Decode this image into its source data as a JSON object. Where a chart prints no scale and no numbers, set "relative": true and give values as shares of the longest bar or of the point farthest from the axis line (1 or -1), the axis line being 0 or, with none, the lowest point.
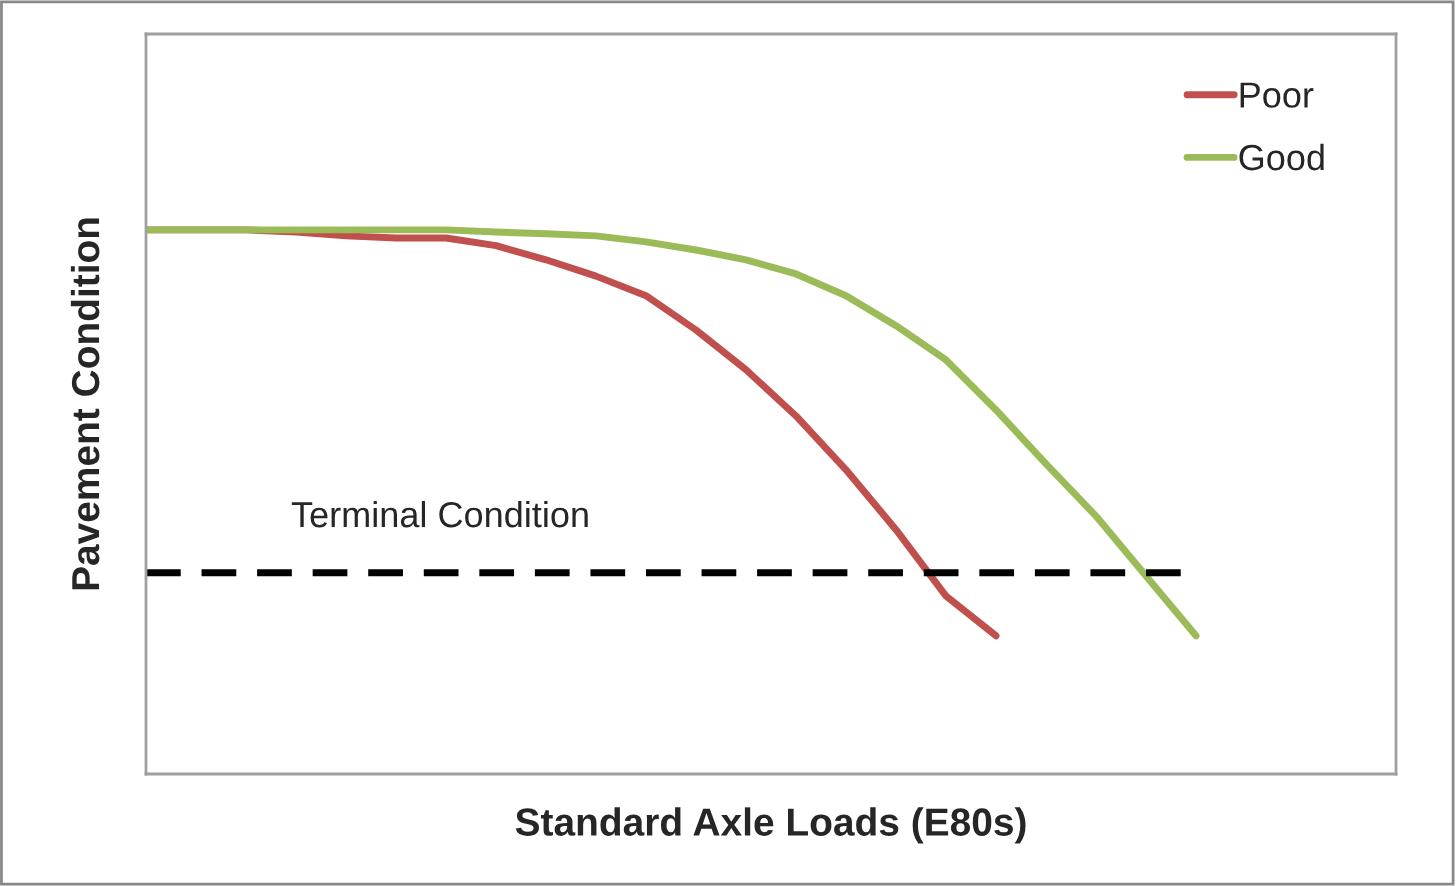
{
  "chart_data": {
    "type": "line",
    "relative": true,
    "xlabel": "Standard Axle Loads (E80s)",
    "ylabel": "Pavement Condition",
    "categories": [
      null,
      null,
      null,
      null,
      null,
      null,
      null,
      null,
      null,
      null,
      null,
      null,
      null,
      null,
      null,
      null,
      null,
      null,
      null,
      null,
      null,
      null,
      null,
      null,
      null,
      null
    ],
    "series": [
      {
        "name": "Poor",
        "color": "#c0504d",
        "values": [
          1.0,
          1.0,
          1.0,
          0.996,
          0.989,
          0.985,
          0.985,
          0.971,
          0.945,
          0.915,
          0.879,
          0.816,
          0.743,
          0.658,
          0.559,
          0.449,
          0.327,
          0.254,
          null,
          null,
          null,
          null,
          null,
          null,
          null,
          null
        ]
      },
      {
        "name": "Good",
        "color": "#9bbb59",
        "values": [
          1.0,
          1.0,
          1.0,
          1.0,
          1.0,
          1.0,
          1.0,
          0.996,
          0.993,
          0.989,
          0.978,
          0.963,
          0.945,
          0.919,
          0.879,
          0.824,
          0.761,
          0.669,
          0.57,
          0.474,
          0.364,
          0.254,
          null,
          null,
          null,
          null
        ]
      }
    ],
    "ref_lines": [
      {
        "axis": "y",
        "value": 0.37,
        "label": "Terminal Condition",
        "color": "#000000",
        "line_style": "dashed"
      }
    ],
    "legend": "top right",
    "marker": "none",
    "line_style": "solid"
  }
}
